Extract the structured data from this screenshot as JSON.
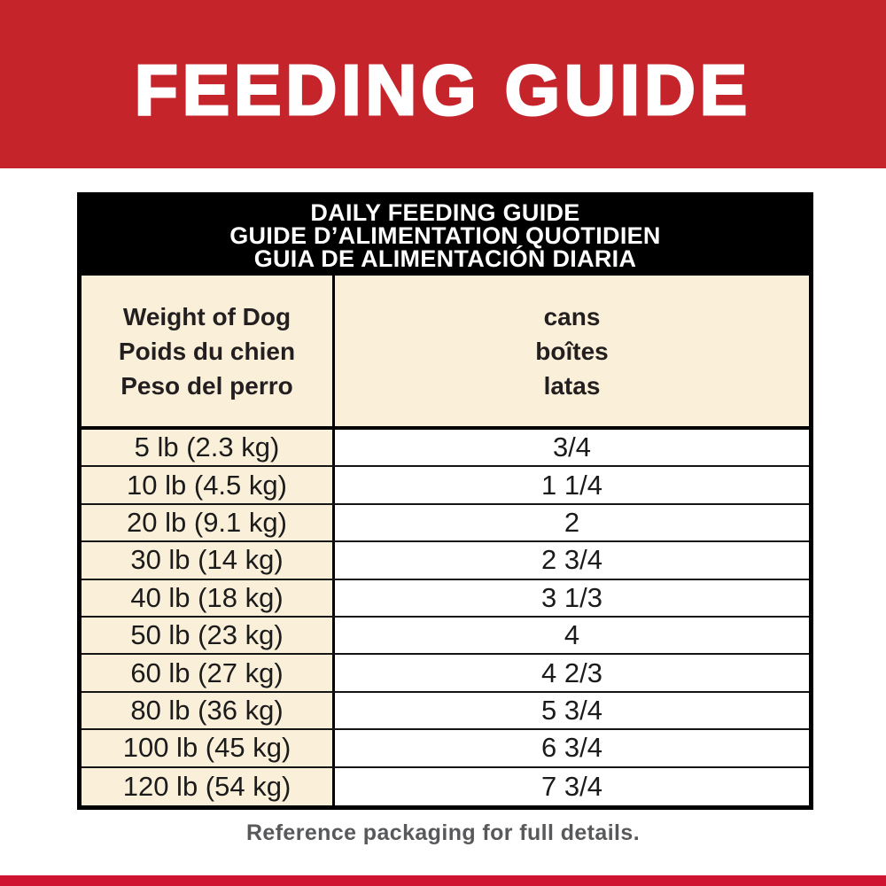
{
  "banner": {
    "title": "FEEDING GUIDE",
    "bg_color": "#C5242B",
    "text_color": "#FFFFFF"
  },
  "table": {
    "title": {
      "en": "DAILY FEEDING GUIDE",
      "fr": "GUIDE D’ALIMENTATION QUOTIDIEN",
      "es": "GUIA DE ALIMENTACIÓN DIARIA"
    },
    "columns": {
      "weight": {
        "en": "Weight of Dog",
        "fr": "Poids du chien",
        "es": "Peso del perro"
      },
      "cans": {
        "en": "cans",
        "fr": "boîtes",
        "es": "latas"
      }
    },
    "rows": [
      {
        "weight": "5 lb (2.3 kg)",
        "cans": "3/4"
      },
      {
        "weight": "10 lb (4.5 kg)",
        "cans": "1 1/4"
      },
      {
        "weight": "20 lb (9.1 kg)",
        "cans": "2"
      },
      {
        "weight": "30 lb (14 kg)",
        "cans": "2 3/4"
      },
      {
        "weight": "40 lb (18 kg)",
        "cans": "3 1/3"
      },
      {
        "weight": "50 lb (23 kg)",
        "cans": "4"
      },
      {
        "weight": "60 lb (27 kg)",
        "cans": "4 2/3"
      },
      {
        "weight": "80 lb (36 kg)",
        "cans": "5 3/4"
      },
      {
        "weight": "100 lb (45 kg)",
        "cans": "6 3/4"
      },
      {
        "weight": "120 lb (54 kg)",
        "cans": "7 3/4"
      }
    ],
    "colors": {
      "header_bg": "#000000",
      "header_text": "#FFFFFF",
      "cream_cell": "#FAEFD9",
      "white_cell": "#FFFFFF",
      "border": "#000000"
    }
  },
  "footer": {
    "note": "Reference packaging for full details.",
    "note_color": "#58595B",
    "strip_color": "#CE1430"
  }
}
